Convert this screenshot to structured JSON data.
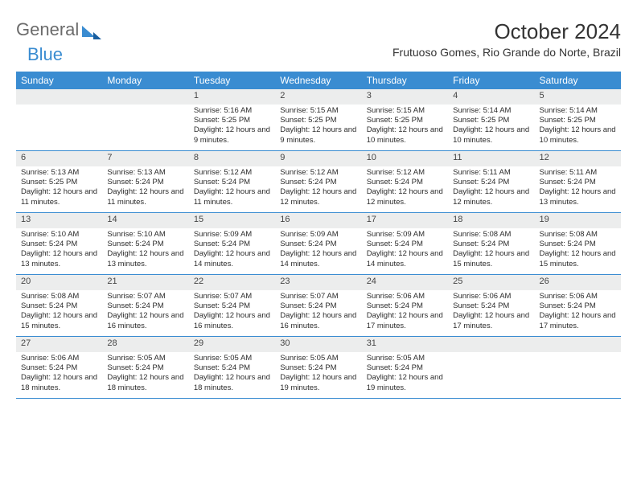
{
  "logo": {
    "word1": "General",
    "word2": "Blue"
  },
  "title": {
    "month": "October 2024",
    "location": "Frutuoso Gomes, Rio Grande do Norte, Brazil"
  },
  "header_bg": "#3a8cd1",
  "daynum_bg": "#eceded",
  "row_border": "#3a8cd1",
  "dayHeaders": [
    "Sunday",
    "Monday",
    "Tuesday",
    "Wednesday",
    "Thursday",
    "Friday",
    "Saturday"
  ],
  "weeks": [
    [
      {
        "day": "",
        "sunrise": "",
        "sunset": "",
        "daylight": ""
      },
      {
        "day": "",
        "sunrise": "",
        "sunset": "",
        "daylight": ""
      },
      {
        "day": "1",
        "sunrise": "Sunrise: 5:16 AM",
        "sunset": "Sunset: 5:25 PM",
        "daylight": "Daylight: 12 hours and 9 minutes."
      },
      {
        "day": "2",
        "sunrise": "Sunrise: 5:15 AM",
        "sunset": "Sunset: 5:25 PM",
        "daylight": "Daylight: 12 hours and 9 minutes."
      },
      {
        "day": "3",
        "sunrise": "Sunrise: 5:15 AM",
        "sunset": "Sunset: 5:25 PM",
        "daylight": "Daylight: 12 hours and 10 minutes."
      },
      {
        "day": "4",
        "sunrise": "Sunrise: 5:14 AM",
        "sunset": "Sunset: 5:25 PM",
        "daylight": "Daylight: 12 hours and 10 minutes."
      },
      {
        "day": "5",
        "sunrise": "Sunrise: 5:14 AM",
        "sunset": "Sunset: 5:25 PM",
        "daylight": "Daylight: 12 hours and 10 minutes."
      }
    ],
    [
      {
        "day": "6",
        "sunrise": "Sunrise: 5:13 AM",
        "sunset": "Sunset: 5:25 PM",
        "daylight": "Daylight: 12 hours and 11 minutes."
      },
      {
        "day": "7",
        "sunrise": "Sunrise: 5:13 AM",
        "sunset": "Sunset: 5:24 PM",
        "daylight": "Daylight: 12 hours and 11 minutes."
      },
      {
        "day": "8",
        "sunrise": "Sunrise: 5:12 AM",
        "sunset": "Sunset: 5:24 PM",
        "daylight": "Daylight: 12 hours and 11 minutes."
      },
      {
        "day": "9",
        "sunrise": "Sunrise: 5:12 AM",
        "sunset": "Sunset: 5:24 PM",
        "daylight": "Daylight: 12 hours and 12 minutes."
      },
      {
        "day": "10",
        "sunrise": "Sunrise: 5:12 AM",
        "sunset": "Sunset: 5:24 PM",
        "daylight": "Daylight: 12 hours and 12 minutes."
      },
      {
        "day": "11",
        "sunrise": "Sunrise: 5:11 AM",
        "sunset": "Sunset: 5:24 PM",
        "daylight": "Daylight: 12 hours and 12 minutes."
      },
      {
        "day": "12",
        "sunrise": "Sunrise: 5:11 AM",
        "sunset": "Sunset: 5:24 PM",
        "daylight": "Daylight: 12 hours and 13 minutes."
      }
    ],
    [
      {
        "day": "13",
        "sunrise": "Sunrise: 5:10 AM",
        "sunset": "Sunset: 5:24 PM",
        "daylight": "Daylight: 12 hours and 13 minutes."
      },
      {
        "day": "14",
        "sunrise": "Sunrise: 5:10 AM",
        "sunset": "Sunset: 5:24 PM",
        "daylight": "Daylight: 12 hours and 13 minutes."
      },
      {
        "day": "15",
        "sunrise": "Sunrise: 5:09 AM",
        "sunset": "Sunset: 5:24 PM",
        "daylight": "Daylight: 12 hours and 14 minutes."
      },
      {
        "day": "16",
        "sunrise": "Sunrise: 5:09 AM",
        "sunset": "Sunset: 5:24 PM",
        "daylight": "Daylight: 12 hours and 14 minutes."
      },
      {
        "day": "17",
        "sunrise": "Sunrise: 5:09 AM",
        "sunset": "Sunset: 5:24 PM",
        "daylight": "Daylight: 12 hours and 14 minutes."
      },
      {
        "day": "18",
        "sunrise": "Sunrise: 5:08 AM",
        "sunset": "Sunset: 5:24 PM",
        "daylight": "Daylight: 12 hours and 15 minutes."
      },
      {
        "day": "19",
        "sunrise": "Sunrise: 5:08 AM",
        "sunset": "Sunset: 5:24 PM",
        "daylight": "Daylight: 12 hours and 15 minutes."
      }
    ],
    [
      {
        "day": "20",
        "sunrise": "Sunrise: 5:08 AM",
        "sunset": "Sunset: 5:24 PM",
        "daylight": "Daylight: 12 hours and 15 minutes."
      },
      {
        "day": "21",
        "sunrise": "Sunrise: 5:07 AM",
        "sunset": "Sunset: 5:24 PM",
        "daylight": "Daylight: 12 hours and 16 minutes."
      },
      {
        "day": "22",
        "sunrise": "Sunrise: 5:07 AM",
        "sunset": "Sunset: 5:24 PM",
        "daylight": "Daylight: 12 hours and 16 minutes."
      },
      {
        "day": "23",
        "sunrise": "Sunrise: 5:07 AM",
        "sunset": "Sunset: 5:24 PM",
        "daylight": "Daylight: 12 hours and 16 minutes."
      },
      {
        "day": "24",
        "sunrise": "Sunrise: 5:06 AM",
        "sunset": "Sunset: 5:24 PM",
        "daylight": "Daylight: 12 hours and 17 minutes."
      },
      {
        "day": "25",
        "sunrise": "Sunrise: 5:06 AM",
        "sunset": "Sunset: 5:24 PM",
        "daylight": "Daylight: 12 hours and 17 minutes."
      },
      {
        "day": "26",
        "sunrise": "Sunrise: 5:06 AM",
        "sunset": "Sunset: 5:24 PM",
        "daylight": "Daylight: 12 hours and 17 minutes."
      }
    ],
    [
      {
        "day": "27",
        "sunrise": "Sunrise: 5:06 AM",
        "sunset": "Sunset: 5:24 PM",
        "daylight": "Daylight: 12 hours and 18 minutes."
      },
      {
        "day": "28",
        "sunrise": "Sunrise: 5:05 AM",
        "sunset": "Sunset: 5:24 PM",
        "daylight": "Daylight: 12 hours and 18 minutes."
      },
      {
        "day": "29",
        "sunrise": "Sunrise: 5:05 AM",
        "sunset": "Sunset: 5:24 PM",
        "daylight": "Daylight: 12 hours and 18 minutes."
      },
      {
        "day": "30",
        "sunrise": "Sunrise: 5:05 AM",
        "sunset": "Sunset: 5:24 PM",
        "daylight": "Daylight: 12 hours and 19 minutes."
      },
      {
        "day": "31",
        "sunrise": "Sunrise: 5:05 AM",
        "sunset": "Sunset: 5:24 PM",
        "daylight": "Daylight: 12 hours and 19 minutes."
      },
      {
        "day": "",
        "sunrise": "",
        "sunset": "",
        "daylight": ""
      },
      {
        "day": "",
        "sunrise": "",
        "sunset": "",
        "daylight": ""
      }
    ]
  ]
}
